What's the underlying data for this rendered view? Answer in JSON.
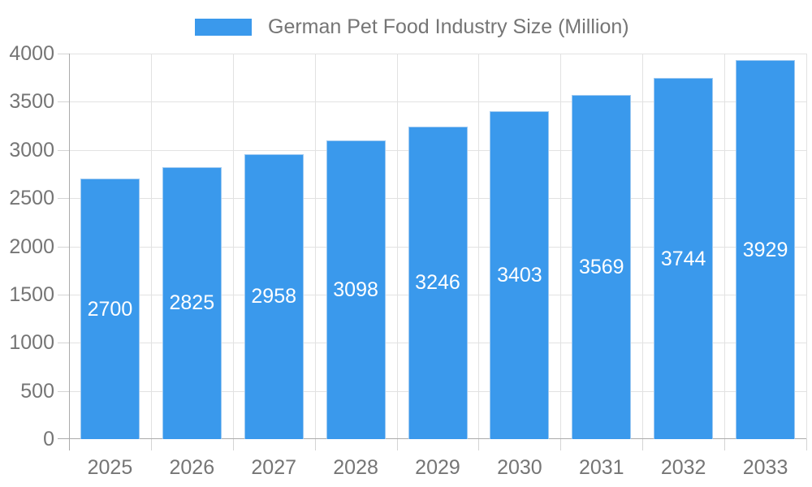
{
  "chart_data": {
    "type": "bar",
    "title": "German Pet Food Industry Size (Million)",
    "categories": [
      "2025",
      "2026",
      "2027",
      "2028",
      "2029",
      "2030",
      "2031",
      "2032",
      "2033"
    ],
    "series": [
      {
        "name": "German Pet Food Industry Size (Million)",
        "values": [
          2700,
          2825,
          2958,
          3098,
          3246,
          3403,
          3569,
          3744,
          3929
        ]
      }
    ],
    "title_position": "top-legend",
    "xlabel": "",
    "ylabel": "",
    "ylim": [
      0,
      4000
    ],
    "ytick_step": 500,
    "ytick_labels": [
      "0",
      "500",
      "1000",
      "1500",
      "2000",
      "2500",
      "3000",
      "3500",
      "4000"
    ],
    "grid": true,
    "value_labels": "inside-middle",
    "legend_position": "top",
    "colors": {
      "bar_fill": "#3A99EC",
      "bar_edge": "#9EC9F1",
      "value_label_text": "#FFFFFF",
      "axis_text": "#757575",
      "grid_line": "#E2E2E2",
      "tick_line": "#D4D4D4",
      "axis_line": "#ABABAB",
      "background": "#FFFFFF"
    }
  }
}
